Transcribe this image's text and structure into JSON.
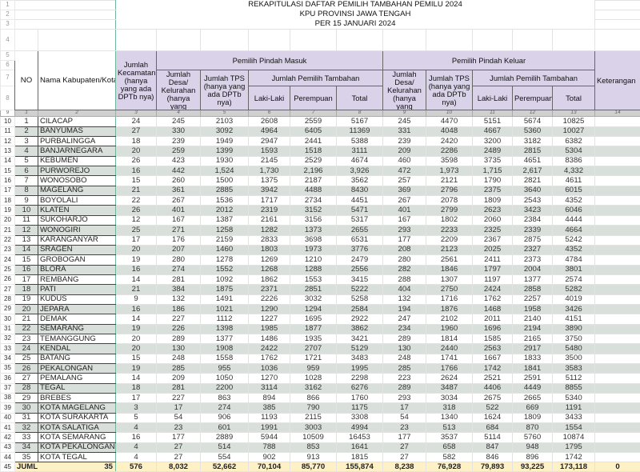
{
  "title_lines": [
    "REKAPITULASI DAFTAR PEMILIH TAMBAHAN PEMILU 2024",
    "KPU PROVINSI JAWA TENGAH",
    "PER 15 JANUARI 2024"
  ],
  "headers": {
    "no": "NO",
    "name": "Nama Kabupaten/Kota",
    "kecamatan": "Jumlah Kecamatan (hanya yang ada DPTb nya)",
    "masuk": "Pemilih Pindah Masuk",
    "keluar": "Pemilih Pindah Keluar",
    "desa": "Jumlah Desa/ Kelurahan (hanya yang",
    "tps": "Jumlah TPS (hanya yang ada DPTb nya)",
    "tambahan": "Jumlah Pemilih Tambahan",
    "laki": "Laki-Laki",
    "perempuan": "Perempuan",
    "total": "Total",
    "keterangan": "Keterangan"
  },
  "column_numbers": [
    "1",
    "2",
    "3",
    "4",
    "5",
    "6",
    "7",
    "8",
    "9",
    "10",
    "11",
    "12",
    "13",
    "14"
  ],
  "rows": [
    [
      "1",
      "CILACAP",
      "24",
      "245",
      "2103",
      "2608",
      "2559",
      "5167",
      "245",
      "4470",
      "5151",
      "5674",
      "10825"
    ],
    [
      "2",
      "BANYUMAS",
      "27",
      "330",
      "3092",
      "4964",
      "6405",
      "11369",
      "331",
      "4048",
      "4667",
      "5360",
      "10027"
    ],
    [
      "3",
      "PURBALINGGA",
      "18",
      "239",
      "1949",
      "2947",
      "2441",
      "5388",
      "239",
      "2420",
      "3200",
      "3182",
      "6382"
    ],
    [
      "4",
      "BANJARNEGARA",
      "20",
      "259",
      "1399",
      "1593",
      "1518",
      "3111",
      "209",
      "2286",
      "2489",
      "2815",
      "5304"
    ],
    [
      "5",
      "KEBUMEN",
      "26",
      "423",
      "1930",
      "2145",
      "2529",
      "4674",
      "460",
      "3598",
      "3735",
      "4651",
      "8386"
    ],
    [
      "6",
      "PURWOREJO",
      "16",
      "442",
      "1,524",
      "1,730",
      "2,196",
      "3,926",
      "472",
      "1,973",
      "1,715",
      "2,617",
      "4,332"
    ],
    [
      "7",
      "WONOSOBO",
      "15",
      "260",
      "1500",
      "1375",
      "2187",
      "3562",
      "257",
      "2121",
      "1790",
      "2821",
      "4611"
    ],
    [
      "8",
      "MAGELANG",
      "21",
      "361",
      "2885",
      "3942",
      "4488",
      "8430",
      "369",
      "2796",
      "2375",
      "3640",
      "6015"
    ],
    [
      "9",
      "BOYOLALI",
      "22",
      "267",
      "1536",
      "1717",
      "2734",
      "4451",
      "267",
      "2078",
      "1809",
      "2543",
      "4352"
    ],
    [
      "10",
      "KLATEN",
      "26",
      "401",
      "2012",
      "2319",
      "3152",
      "5471",
      "401",
      "2799",
      "2623",
      "3423",
      "6046"
    ],
    [
      "11",
      "SUKOHARJO",
      "12",
      "167",
      "1387",
      "2161",
      "3156",
      "5317",
      "167",
      "1802",
      "2060",
      "2384",
      "4444"
    ],
    [
      "12",
      "WONOGIRI",
      "25",
      "271",
      "1258",
      "1282",
      "1373",
      "2655",
      "293",
      "2233",
      "2325",
      "2339",
      "4664"
    ],
    [
      "13",
      "KARANGANYAR",
      "17",
      "176",
      "2159",
      "2833",
      "3698",
      "6531",
      "177",
      "2209",
      "2367",
      "2875",
      "5242"
    ],
    [
      "14",
      "SRAGEN",
      "20",
      "207",
      "1460",
      "1803",
      "1973",
      "3776",
      "208",
      "2123",
      "2025",
      "2327",
      "4352"
    ],
    [
      "15",
      "GROBOGAN",
      "19",
      "280",
      "1278",
      "1269",
      "1210",
      "2479",
      "280",
      "2561",
      "2411",
      "2373",
      "4784"
    ],
    [
      "16",
      "BLORA",
      "16",
      "274",
      "1552",
      "1268",
      "1288",
      "2556",
      "282",
      "1846",
      "1797",
      "2004",
      "3801"
    ],
    [
      "17",
      "REMBANG",
      "14",
      "281",
      "1092",
      "1862",
      "1553",
      "3415",
      "288",
      "1307",
      "1197",
      "1377",
      "2574"
    ],
    [
      "18",
      "PATI",
      "21",
      "384",
      "1875",
      "2371",
      "2851",
      "5222",
      "404",
      "2750",
      "2424",
      "2858",
      "5282"
    ],
    [
      "19",
      "KUDUS",
      "9",
      "132",
      "1491",
      "2226",
      "3032",
      "5258",
      "132",
      "1716",
      "1762",
      "2257",
      "4019"
    ],
    [
      "20",
      "JEPARA",
      "16",
      "186",
      "1021",
      "1290",
      "1294",
      "2584",
      "194",
      "1876",
      "1468",
      "1958",
      "3426"
    ],
    [
      "21",
      "DEMAK",
      "14",
      "227",
      "1112",
      "1227",
      "1695",
      "2922",
      "247",
      "2102",
      "2011",
      "2140",
      "4151"
    ],
    [
      "22",
      "SEMARANG",
      "19",
      "226",
      "1398",
      "1985",
      "1877",
      "3862",
      "234",
      "1960",
      "1696",
      "2194",
      "3890"
    ],
    [
      "23",
      "TEMANGGUNG",
      "20",
      "289",
      "1377",
      "1486",
      "1935",
      "3421",
      "289",
      "1814",
      "1585",
      "2165",
      "3750"
    ],
    [
      "24",
      "KENDAL",
      "20",
      "130",
      "1908",
      "2422",
      "2707",
      "5129",
      "130",
      "2440",
      "2563",
      "2917",
      "5480"
    ],
    [
      "25",
      "BATANG",
      "15",
      "248",
      "1558",
      "1762",
      "1721",
      "3483",
      "248",
      "1741",
      "1667",
      "1833",
      "3500"
    ],
    [
      "26",
      "PEKALONGAN",
      "19",
      "285",
      "955",
      "1036",
      "959",
      "1995",
      "285",
      "1766",
      "1742",
      "1841",
      "3583"
    ],
    [
      "27",
      "PEMALANG",
      "14",
      "209",
      "1050",
      "1270",
      "1028",
      "2298",
      "223",
      "2624",
      "2521",
      "2591",
      "5112"
    ],
    [
      "28",
      "TEGAL",
      "18",
      "281",
      "2200",
      "3114",
      "3162",
      "6276",
      "289",
      "3487",
      "4406",
      "4449",
      "8855"
    ],
    [
      "29",
      "BREBES",
      "17",
      "227",
      "863",
      "894",
      "866",
      "1760",
      "293",
      "3034",
      "2675",
      "2665",
      "5340"
    ],
    [
      "30",
      "KOTA MAGELANG",
      "3",
      "17",
      "274",
      "385",
      "790",
      "1175",
      "17",
      "318",
      "522",
      "669",
      "1191"
    ],
    [
      "31",
      "KOTA SURAKARTA",
      "5",
      "54",
      "906",
      "1193",
      "2115",
      "3308",
      "54",
      "1340",
      "1624",
      "1809",
      "3433"
    ],
    [
      "32",
      "KOTA SALATIGA",
      "4",
      "23",
      "601",
      "1991",
      "3003",
      "4994",
      "23",
      "513",
      "684",
      "870",
      "1554"
    ],
    [
      "33",
      "KOTA SEMARANG",
      "16",
      "177",
      "2889",
      "5944",
      "10509",
      "16453",
      "177",
      "3537",
      "5114",
      "5760",
      "10874"
    ],
    [
      "34",
      "KOTA PEKALONGAN",
      "4",
      "27",
      "514",
      "788",
      "853",
      "1641",
      "27",
      "658",
      "847",
      "948",
      "1795"
    ],
    [
      "35",
      "KOTA TEGAL",
      "4",
      "27",
      "554",
      "902",
      "913",
      "1815",
      "27",
      "582",
      "846",
      "896",
      "1742"
    ]
  ],
  "totals": {
    "label": "JUML",
    "count": "35",
    "values": [
      "576",
      "8,032",
      "52,662",
      "70,104",
      "85,770",
      "155,874",
      "8,238",
      "76,928",
      "79,893",
      "93,225",
      "173,118",
      "0"
    ]
  }
}
